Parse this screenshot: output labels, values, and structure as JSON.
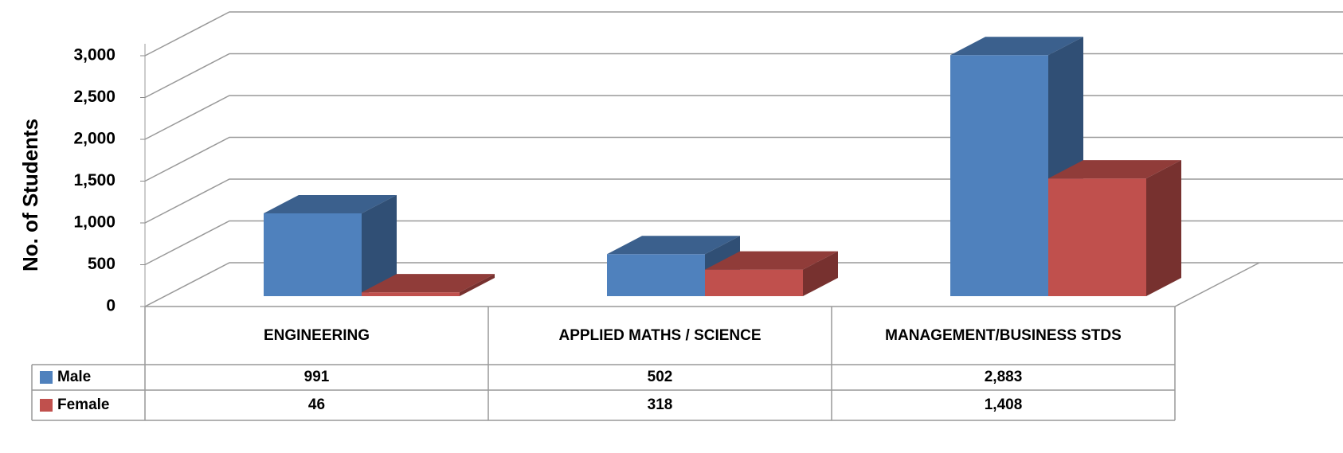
{
  "chart_data": {
    "type": "bar3d",
    "y_label": "No. of Students",
    "categories": [
      "ENGINEERING",
      "APPLIED MATHS / SCIENCE",
      "MANAGEMENT/BUSINESS STDS"
    ],
    "series": [
      {
        "name": "Male",
        "color": "#4f81bd",
        "values": [
          991,
          502,
          2883
        ],
        "value_labels": [
          "991",
          "502",
          "2,883"
        ]
      },
      {
        "name": "Female",
        "color": "#c0504d",
        "values": [
          46,
          318,
          1408
        ],
        "value_labels": [
          "46",
          "318",
          "1,408"
        ]
      }
    ],
    "ylim": [
      0,
      3000
    ],
    "yticks": [
      0,
      500,
      {
        "value": 1000,
        "label": "1,000"
      },
      {
        "value": 1500,
        "label": "1,500"
      },
      {
        "value": 2000,
        "label": "2,000"
      },
      {
        "value": 2500,
        "label": "2,500"
      },
      {
        "value": 3000,
        "label": "3,000"
      }
    ],
    "grid": true,
    "data_table": true
  }
}
